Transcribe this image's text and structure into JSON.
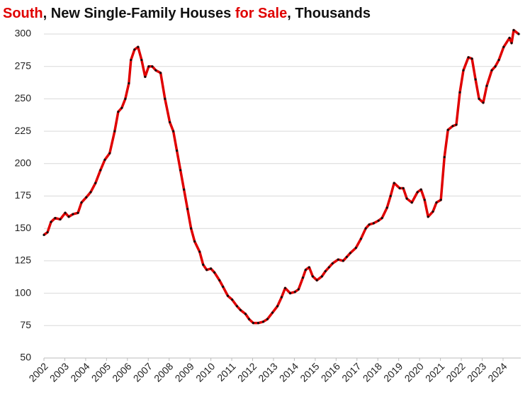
{
  "chart_data": {
    "type": "line",
    "title_parts": [
      {
        "text": "South",
        "color": "#e00000"
      },
      {
        "text": ", New Single-Family Houses ",
        "color": "#111111"
      },
      {
        "text": "for Sale",
        "color": "#e00000"
      },
      {
        "text": ", Thousands",
        "color": "#111111"
      }
    ],
    "x": [
      2002.0,
      2002.17,
      2002.34,
      2002.54,
      2002.78,
      2003.02,
      2003.19,
      2003.39,
      2003.63,
      2003.8,
      2004.03,
      2004.24,
      2004.47,
      2004.71,
      2004.92,
      2005.15,
      2005.39,
      2005.56,
      2005.73,
      2005.9,
      2006.07,
      2006.17,
      2006.34,
      2006.51,
      2006.68,
      2006.85,
      2007.02,
      2007.19,
      2007.36,
      2007.59,
      2007.8,
      2008.03,
      2008.2,
      2008.37,
      2008.54,
      2008.71,
      2008.88,
      2009.05,
      2009.22,
      2009.46,
      2009.63,
      2009.8,
      2010.0,
      2010.17,
      2010.41,
      2010.58,
      2010.81,
      2011.02,
      2011.25,
      2011.42,
      2011.66,
      2011.83,
      2012.03,
      2012.27,
      2012.51,
      2012.71,
      2012.95,
      2013.19,
      2013.39,
      2013.56,
      2013.8,
      2014.03,
      2014.2,
      2014.41,
      2014.54,
      2014.71,
      2014.88,
      2015.08,
      2015.32,
      2015.49,
      2015.66,
      2015.83,
      2016.1,
      2016.34,
      2016.51,
      2016.68,
      2016.95,
      2017.19,
      2017.42,
      2017.59,
      2017.8,
      2018.03,
      2018.2,
      2018.44,
      2018.61,
      2018.78,
      2019.05,
      2019.22,
      2019.39,
      2019.63,
      2019.9,
      2020.07,
      2020.24,
      2020.41,
      2020.64,
      2020.81,
      2021.02,
      2021.19,
      2021.36,
      2021.59,
      2021.76,
      2021.93,
      2022.1,
      2022.34,
      2022.51,
      2022.68,
      2022.85,
      2023.05,
      2023.22,
      2023.46,
      2023.63,
      2023.8,
      2024.03,
      2024.31,
      2024.41,
      2024.51,
      2024.75
    ],
    "values": [
      145,
      147,
      155,
      158,
      157,
      162,
      159,
      161,
      162,
      170,
      174,
      178,
      185,
      195,
      203,
      208,
      225,
      240,
      243,
      250,
      262,
      280,
      288,
      290,
      280,
      267,
      275,
      275,
      272,
      270,
      250,
      232,
      225,
      210,
      195,
      180,
      165,
      150,
      140,
      132,
      122,
      118,
      119,
      116,
      110,
      105,
      98,
      95,
      90,
      87,
      84,
      80,
      77,
      77,
      78,
      80,
      85,
      90,
      97,
      104,
      100,
      101,
      103,
      112,
      118,
      120,
      113,
      110,
      113,
      117,
      120,
      123,
      126,
      125,
      128,
      131,
      135,
      142,
      150,
      153,
      154,
      156,
      158,
      166,
      175,
      185,
      181,
      181,
      173,
      170,
      178,
      180,
      172,
      159,
      163,
      170,
      172,
      205,
      226,
      229,
      230,
      255,
      272,
      282,
      281,
      265,
      250,
      247,
      260,
      272,
      275,
      280,
      290,
      297,
      293,
      303,
      300
    ],
    "color": "#e00000",
    "marker_color": "#111111",
    "xlim": [
      2002,
      2024.85
    ],
    "xticks": [
      2002,
      2003,
      2004,
      2005,
      2006,
      2007,
      2008,
      2009,
      2010,
      2011,
      2012,
      2013,
      2014,
      2015,
      2016,
      2017,
      2018,
      2019,
      2020,
      2021,
      2022,
      2023,
      2024
    ],
    "ylim": [
      50,
      300
    ],
    "yticks": [
      50,
      75,
      100,
      125,
      150,
      175,
      200,
      225,
      250,
      275,
      300
    ],
    "grid": true
  }
}
